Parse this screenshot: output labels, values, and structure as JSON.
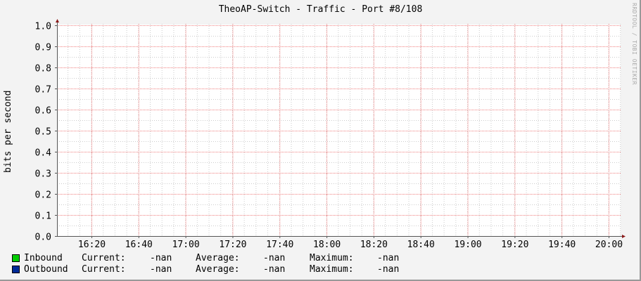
{
  "chart_data": {
    "type": "line",
    "title": "TheoAP-Switch - Traffic - Port #8/108",
    "ylabel": "bits per second",
    "watermark": "RRDTOOL / TOBI OETIKER",
    "ylim": [
      0,
      1.0
    ],
    "y_ticks": [
      "0.0",
      "0.1",
      "0.2",
      "0.3",
      "0.4",
      "0.5",
      "0.6",
      "0.7",
      "0.8",
      "0.9",
      "1.0"
    ],
    "x_ticks": [
      "16:20",
      "16:40",
      "17:00",
      "17:20",
      "17:40",
      "18:00",
      "18:20",
      "18:40",
      "19:00",
      "19:20",
      "19:40",
      "20:00"
    ],
    "grid": true,
    "series": [
      {
        "name": "Inbound",
        "color": "#00cc00",
        "values": []
      },
      {
        "name": "Outbound",
        "color": "#002a97",
        "values": []
      }
    ],
    "legend": [
      {
        "name": "Inbound",
        "color": "#00cc00",
        "current_label": "Current:",
        "current": "-nan",
        "average_label": "Average:",
        "average": "-nan",
        "maximum_label": "Maximum:",
        "maximum": "-nan"
      },
      {
        "name": "Outbound",
        "color": "#002a97",
        "current_label": "Current:",
        "current": "-nan",
        "average_label": "Average:",
        "average": "-nan",
        "maximum_label": "Maximum:",
        "maximum": "-nan"
      }
    ]
  }
}
